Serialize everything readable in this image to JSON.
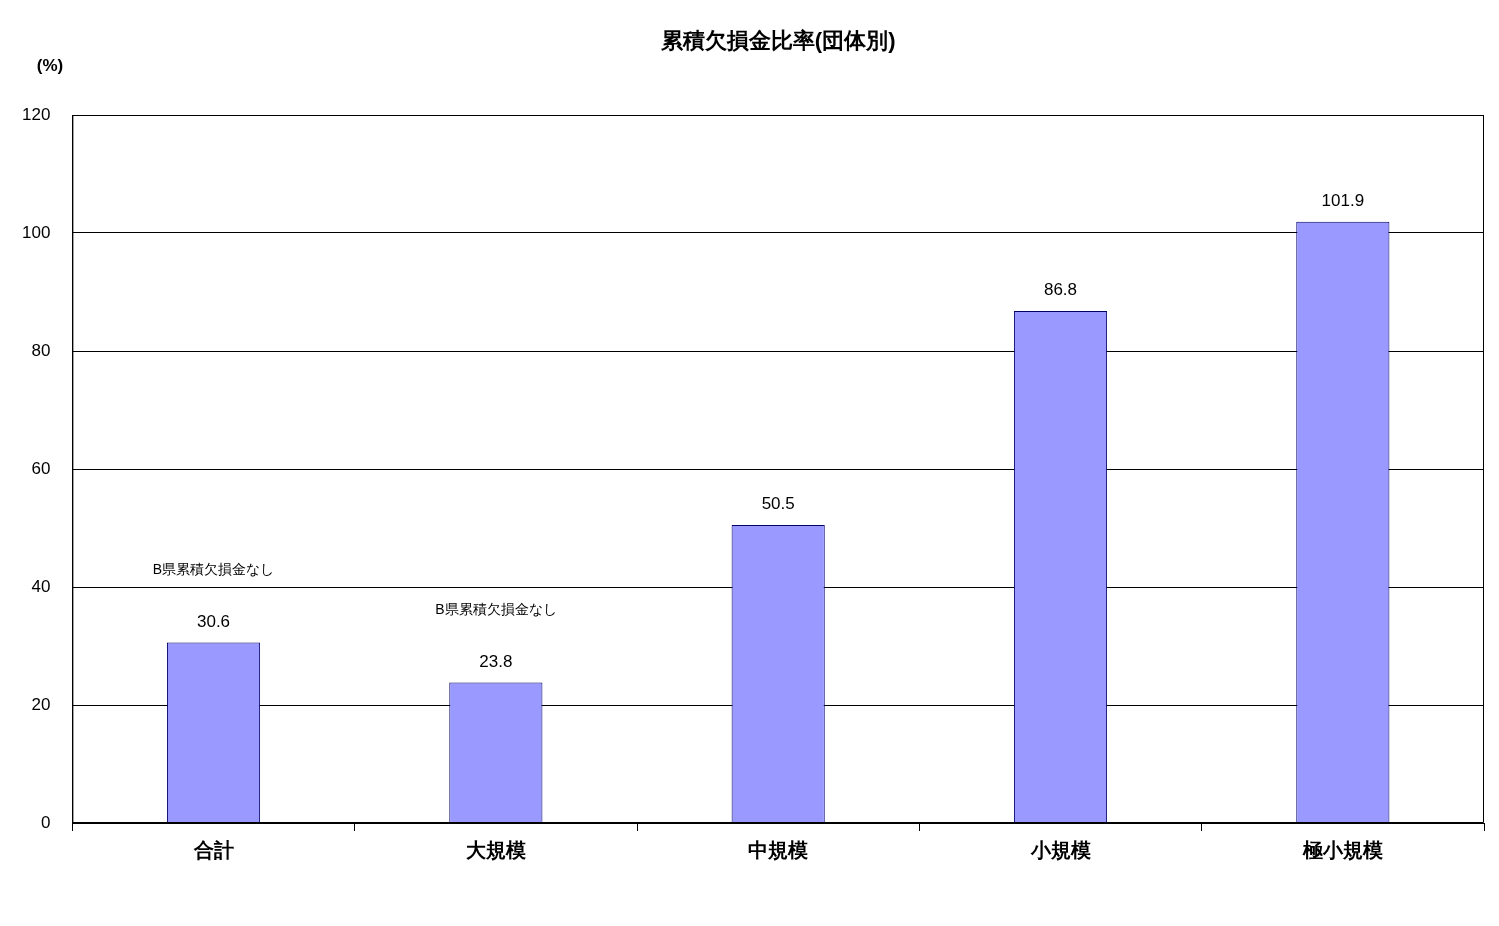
{
  "chart_data": {
    "type": "bar",
    "title": "累積欠損金比率(団体別)",
    "ylabel": "(%)",
    "categories": [
      "合計",
      "大規模",
      "中規模",
      "小規模",
      "極小規模"
    ],
    "values": [
      30.6,
      23.8,
      50.5,
      86.8,
      101.9
    ],
    "color": "#9999ff",
    "ylim": [
      0,
      120
    ],
    "yticks": [
      0,
      20,
      40,
      60,
      80,
      100,
      120
    ],
    "grid": "y",
    "data_labels": true,
    "annotations": [
      "B県累積欠損金なし",
      "B県累積欠損金なし"
    ]
  }
}
